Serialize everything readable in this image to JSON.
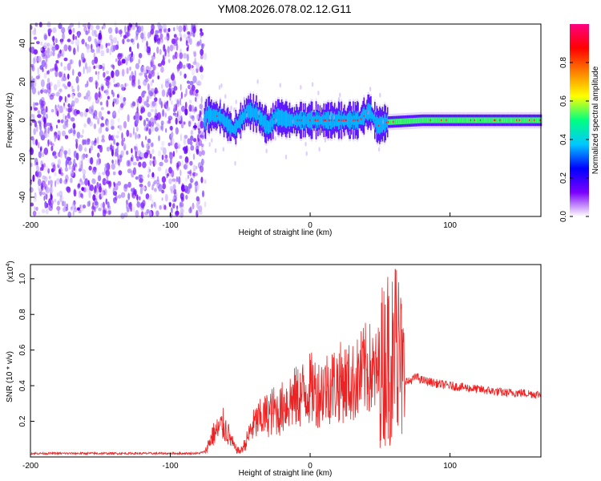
{
  "figure": {
    "title": "YM08.2026.078.02.12.G11"
  },
  "chart_data": [
    {
      "type": "heatmap",
      "xlabel": "Height of straight line (km)",
      "ylabel": "Frequency (Hz)",
      "xlim": [
        -200,
        165
      ],
      "ylim": [
        -50,
        50
      ],
      "xticks": [
        -200,
        -100,
        0,
        100
      ],
      "yticks": [
        -40,
        -20,
        0,
        20,
        40
      ],
      "colorbar": {
        "label": "Normalized spectral amplitude",
        "range": [
          0,
          1
        ],
        "ticks": [
          0.0,
          0.2,
          0.4,
          0.6,
          0.8
        ],
        "tick_labels": [
          "0.0",
          "0.2",
          "0.4",
          "0.6",
          "0.8"
        ],
        "colormap": [
          "#ffffff",
          "#7a00ff",
          "#0000ff",
          "#00c8ff",
          "#00ff80",
          "#ffff00",
          "#ff8000",
          "#ff0000",
          "#ff0080"
        ]
      },
      "noise_region_x": [
        -200,
        -75
      ],
      "signal_center_freq": [
        [
          -75,
          3
        ],
        [
          -65,
          2
        ],
        [
          -55,
          -5
        ],
        [
          -45,
          5
        ],
        [
          -38,
          3
        ],
        [
          -30,
          -4
        ],
        [
          -25,
          2
        ],
        [
          -15,
          0
        ],
        [
          0,
          0
        ],
        [
          20,
          0
        ],
        [
          35,
          0
        ],
        [
          42,
          5
        ],
        [
          48,
          -3
        ],
        [
          55,
          -1
        ],
        [
          80,
          0
        ],
        [
          165,
          0
        ]
      ]
    },
    {
      "type": "line",
      "xlabel": "Height of straight line (km)",
      "ylabel": "SNR (10 * v/v)",
      "y_scale_label": "(x10",
      "y_scale_exp": "4",
      "y_scale_close": ")",
      "xlim": [
        -200,
        165
      ],
      "ylim": [
        0,
        1.08
      ],
      "xticks": [
        -200,
        -100,
        0,
        100
      ],
      "yticks": [
        0.2,
        0.4,
        0.6,
        0.8,
        1.0
      ],
      "ytick_labels": [
        "0.2",
        "0.4",
        "0.6",
        "0.8",
        "1.0"
      ],
      "line_color": "#ee2222",
      "series": [
        {
          "x": [
            -200,
            -180,
            -160,
            -140,
            -120,
            -100,
            -90,
            -80,
            -75,
            -70,
            -66,
            -62,
            -58,
            -54,
            -50,
            -46,
            -42,
            -38,
            -34,
            -30,
            -26,
            -22,
            -18,
            -14,
            -10,
            -6,
            -2,
            2,
            6,
            10,
            14,
            18,
            22,
            26,
            30,
            34,
            38,
            42,
            46,
            50,
            54,
            58,
            60,
            62,
            64,
            66,
            70,
            76,
            80,
            86,
            92,
            100,
            110,
            120,
            130,
            140,
            150,
            165
          ],
          "y": [
            0.02,
            0.02,
            0.02,
            0.02,
            0.02,
            0.02,
            0.02,
            0.02,
            0.03,
            0.12,
            0.15,
            0.18,
            0.12,
            0.05,
            0.03,
            0.08,
            0.16,
            0.2,
            0.22,
            0.24,
            0.26,
            0.25,
            0.3,
            0.32,
            0.33,
            0.35,
            0.38,
            0.38,
            0.36,
            0.39,
            0.4,
            0.41,
            0.42,
            0.42,
            0.41,
            0.44,
            0.48,
            0.5,
            0.45,
            0.5,
            0.55,
            0.6,
            0.65,
            0.62,
            0.55,
            0.45,
            0.42,
            0.45,
            0.43,
            0.42,
            0.41,
            0.4,
            0.39,
            0.38,
            0.37,
            0.36,
            0.36,
            0.35
          ]
        }
      ]
    }
  ]
}
